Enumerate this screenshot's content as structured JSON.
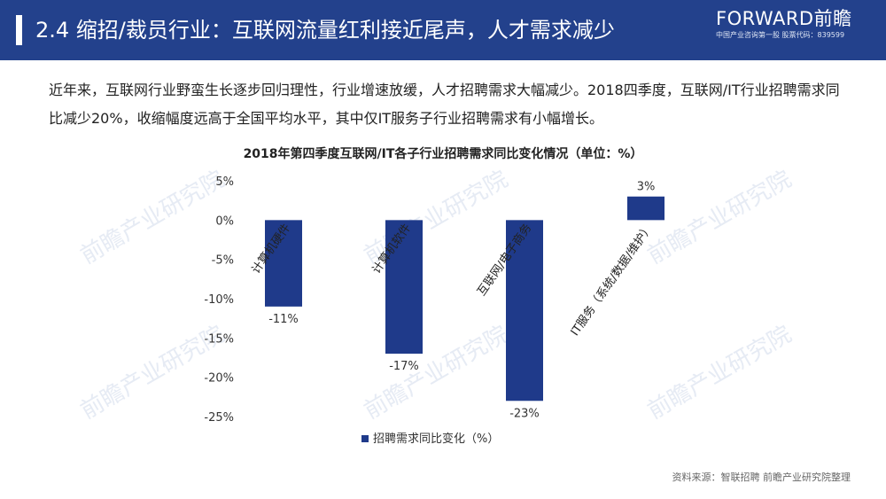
{
  "header": {
    "title": "2.4 缩招/裁员行业：互联网流量红利接近尾声，人才需求减少",
    "brand": "FORWARD前瞻",
    "brand_sub": "中国产业咨询第一股  股票代码：839599",
    "color": "#23418c"
  },
  "intro": "近年来，互联网行业野蛮生长逐步回归理性，行业增速放缓，人才招聘需求大幅减少。2018四季度，互联网/IT行业招聘需求同比减少20%，收缩幅度远高于全国平均水平，其中仅IT服务子行业招聘需求有小幅增长。",
  "chart_data": {
    "type": "bar",
    "title": "2018年第四季度互联网/IT各子行业招聘需求同比变化情况（单位：%）",
    "categories": [
      "计算机硬件",
      "计算机软件",
      "互联网/电子商务",
      "IT服务（系统/数据/维护）"
    ],
    "series": [
      {
        "name": "招聘需求同比变化（%）",
        "values": [
          -11,
          -17,
          -23,
          3
        ],
        "color": "#1f3a8a"
      }
    ],
    "data_labels": [
      "-11%",
      "-17%",
      "-23%",
      "3%"
    ],
    "y_ticks": [
      "5%",
      "0%",
      "-5%",
      "-10%",
      "-15%",
      "-20%",
      "-25%"
    ],
    "ylim": [
      -25,
      5
    ],
    "grid": false,
    "legend_position": "bottom"
  },
  "source": "资料来源：智联招聘 前瞻产业研究院整理",
  "watermark": "前瞻产业研究院"
}
